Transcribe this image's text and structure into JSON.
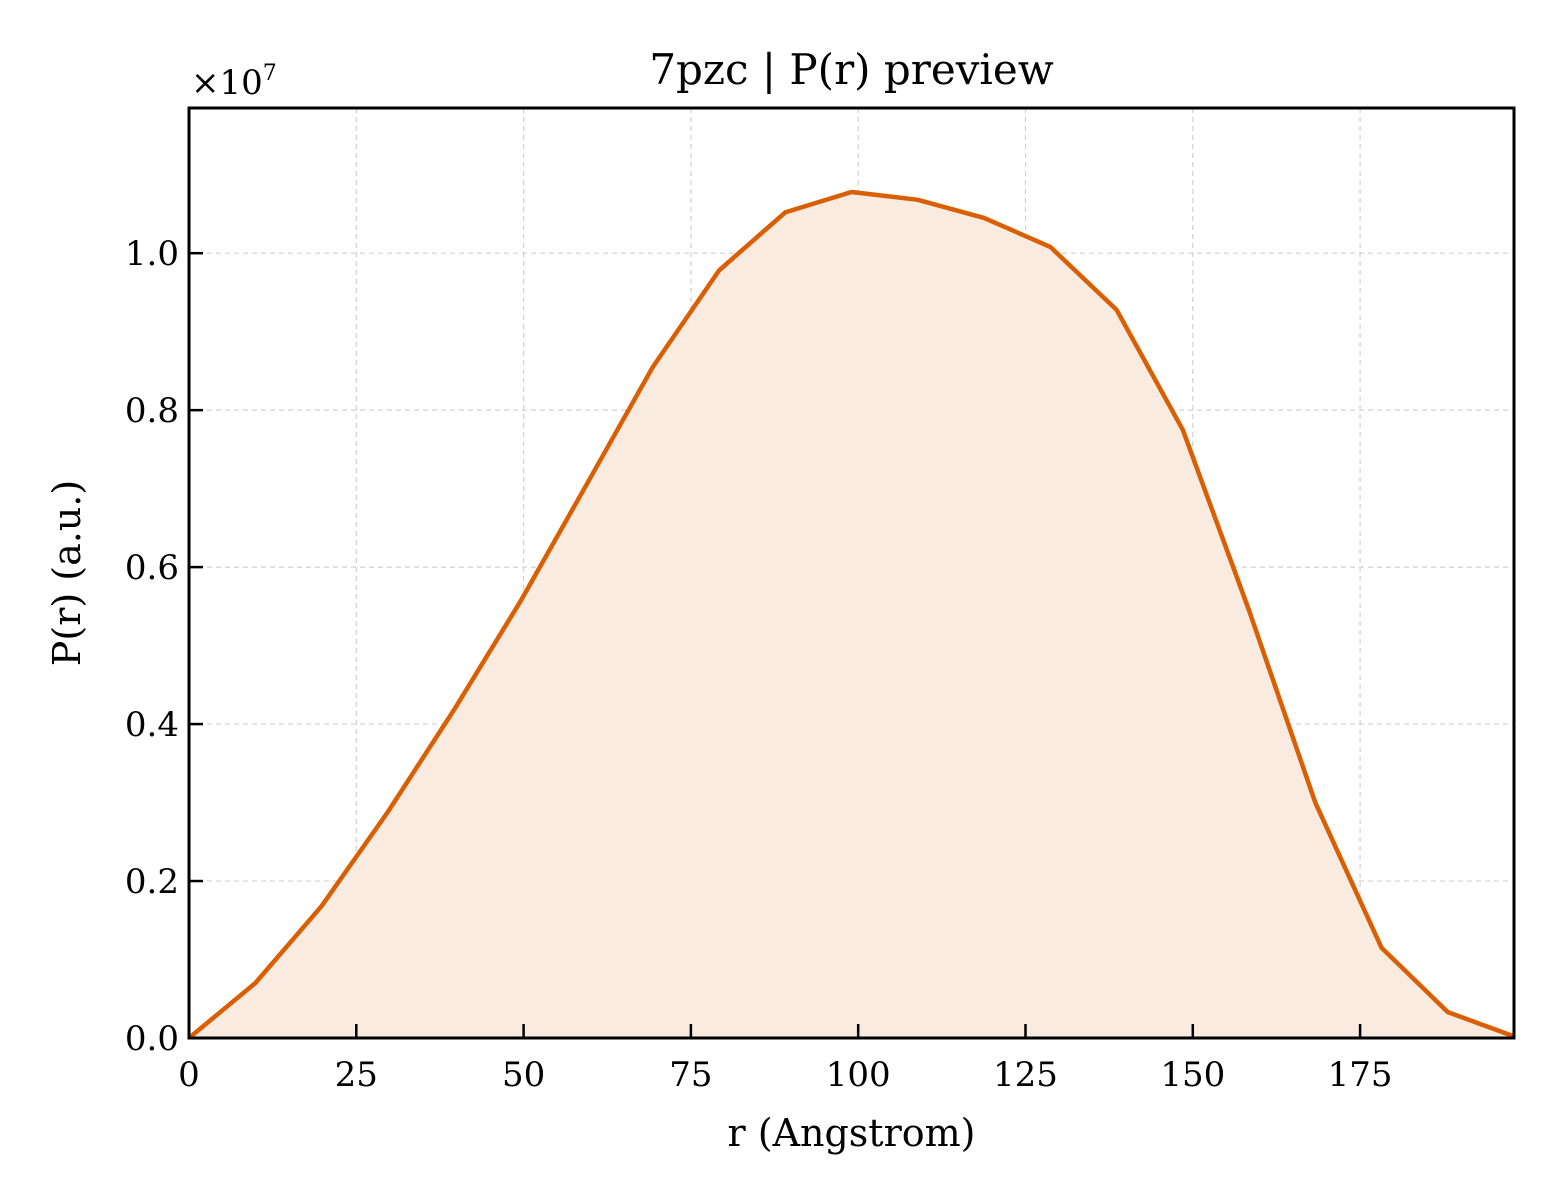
{
  "chart_data": {
    "type": "area",
    "title": "7pzc | P(r) preview",
    "xlabel": "r (Angstrom)",
    "ylabel": "P(r) (a.u.)",
    "y_offset_label": "×10",
    "y_offset_exponent": "7",
    "xlim": [
      0,
      198
    ],
    "ylim": [
      0,
      1.185
    ],
    "y_scale_factor": 10000000,
    "xticks": [
      0,
      25,
      50,
      75,
      100,
      125,
      150,
      175
    ],
    "xtick_labels": [
      "0",
      "25",
      "50",
      "75",
      "100",
      "125",
      "150",
      "175"
    ],
    "yticks": [
      0.0,
      0.2,
      0.4,
      0.6,
      0.8,
      1.0
    ],
    "ytick_labels": [
      "0.0",
      "0.2",
      "0.4",
      "0.6",
      "0.8",
      "1.0"
    ],
    "grid": true,
    "line_color": "#d95f02",
    "fill_color": "#faebe0",
    "series": [
      {
        "x": [
          0,
          9.9,
          19.8,
          29.7,
          39.6,
          49.5,
          59.4,
          69.3,
          79.2,
          89.1,
          99,
          108.9,
          118.8,
          128.7,
          138.6,
          148.5,
          158.4,
          168.3,
          178.2,
          188.1,
          198
        ],
        "y": [
          0.0,
          0.07,
          0.168,
          0.288,
          0.418,
          0.556,
          0.705,
          0.855,
          0.978,
          1.052,
          1.078,
          1.068,
          1.045,
          1.008,
          0.928,
          0.775,
          0.545,
          0.3,
          0.115,
          0.033,
          0.002
        ]
      }
    ]
  }
}
